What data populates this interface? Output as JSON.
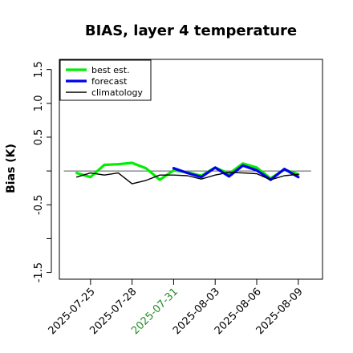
{
  "chart_data": {
    "type": "line",
    "title": "BIAS, layer 4 temperature",
    "xlabel": "",
    "ylabel": "Bias (K)",
    "ylim": [
      -1.6,
      1.65
    ],
    "yticks": [
      -1.5,
      -1.0,
      -0.5,
      0.0,
      0.5,
      1.0,
      1.5
    ],
    "ytick_labels": [
      "-1.5",
      "",
      "-0.5",
      "",
      "0.5",
      "1.0",
      "1.5"
    ],
    "x": [
      "2025-07-24",
      "2025-07-25",
      "2025-07-26",
      "2025-07-27",
      "2025-07-28",
      "2025-07-29",
      "2025-07-30",
      "2025-07-31",
      "2025-08-01",
      "2025-08-02",
      "2025-08-03",
      "2025-08-04",
      "2025-08-05",
      "2025-08-06",
      "2025-08-07",
      "2025-08-08",
      "2025-08-09"
    ],
    "xlim": [
      "2025-07-22T18:00",
      "2025-08-10T18:00"
    ],
    "xtick_labels": [
      "2025-07-25",
      "2025-07-28",
      "2025-07-31",
      "2025-08-03",
      "2025-08-06",
      "2025-08-09"
    ],
    "highlighted_xtick": "2025-07-31",
    "highlight_color": "#228b22",
    "reference_line": 0.0,
    "series": [
      {
        "name": "best est.",
        "color": "#00ee00",
        "values": [
          -0.03,
          -0.09,
          0.09,
          0.1,
          0.12,
          0.04,
          -0.13,
          0.01,
          -0.02,
          -0.07,
          0.05,
          -0.04,
          0.11,
          0.05,
          -0.11,
          0.02,
          -0.05
        ]
      },
      {
        "name": "forecast",
        "color": "#0000ee",
        "values": [
          null,
          null,
          null,
          null,
          null,
          null,
          null,
          0.04,
          -0.03,
          -0.09,
          0.05,
          -0.08,
          0.08,
          0.01,
          -0.13,
          0.03,
          -0.09
        ]
      },
      {
        "name": "climatology",
        "color": "#000000",
        "values": [
          -0.09,
          -0.03,
          -0.06,
          -0.03,
          -0.19,
          -0.14,
          -0.06,
          -0.06,
          -0.07,
          -0.12,
          -0.06,
          -0.02,
          -0.03,
          -0.04,
          -0.13,
          -0.07,
          -0.05
        ]
      }
    ],
    "legend_position": "top-left",
    "grid": false
  }
}
